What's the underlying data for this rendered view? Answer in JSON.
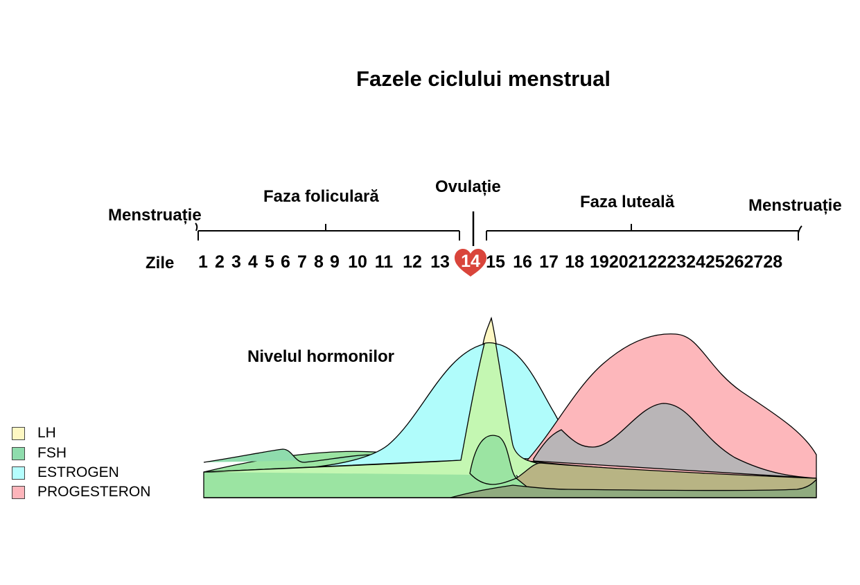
{
  "title": "Fazele ciclului menstrual",
  "phases": {
    "menstruation_start": "Menstruație",
    "follicular": "Faza foliculară",
    "ovulation": "Ovulație",
    "luteal": "Faza luteală",
    "menstruation_end": "Menstruație"
  },
  "days_label": "Zile",
  "days": [
    "1",
    "2",
    "3",
    "4",
    "5",
    "6",
    "7",
    "8",
    "9",
    "10",
    "11",
    "12",
    "13",
    "14",
    "15",
    "16",
    "17",
    "18",
    "19",
    "20",
    "21",
    "22",
    "23",
    "24",
    "25",
    "26",
    "27",
    "28"
  ],
  "ovulation_day": "14",
  "hormone_label": "Nivelul hormonilor",
  "legend": [
    {
      "label": "LH",
      "color": "#fdf7c3"
    },
    {
      "label": "FSH",
      "color": "#8fdcad"
    },
    {
      "label": "ESTROGEN",
      "color": "#b5fdfd"
    },
    {
      "label": "PROGESTERON",
      "color": "#fdb5bb"
    }
  ],
  "colors": {
    "heart": "#d9453b",
    "estrogen": "#b0fcfb",
    "lh": "#c4f7b2",
    "fsh": "#9be4a2",
    "progesterone": "#fdb7bb",
    "overlap_grey": "#b9b5b7",
    "overlap_olive": "#b8b484",
    "overlap_dark": "#90ab7f"
  }
}
